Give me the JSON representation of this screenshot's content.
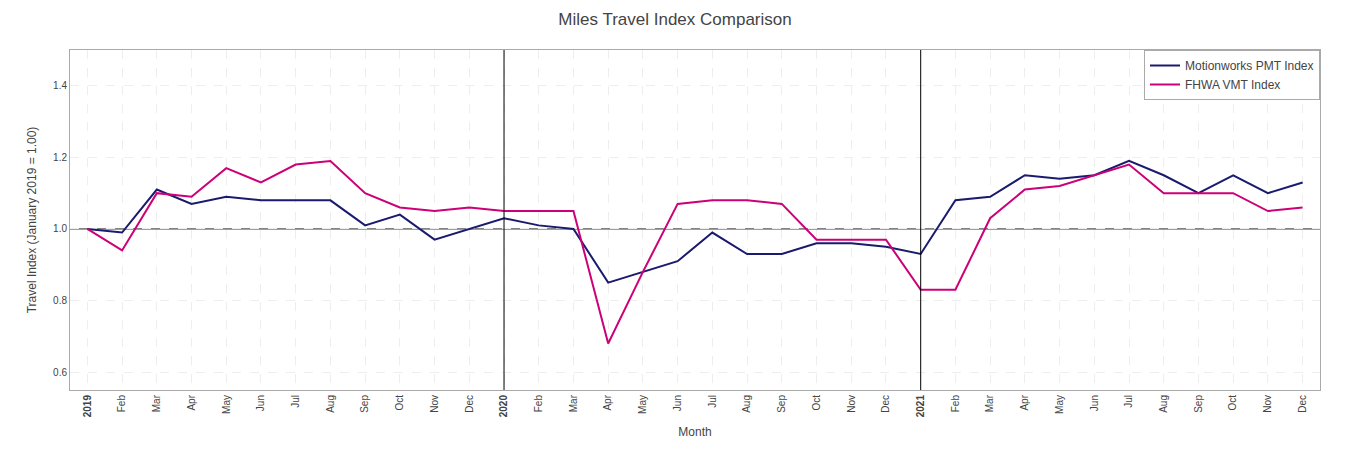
{
  "chart_data": {
    "type": "line",
    "title": "Miles Travel Index Comparison",
    "x_label": "Month",
    "y_label": "Travel Index (January 2019 = 1.00)",
    "categories": [
      "2019",
      "Feb",
      "Mar",
      "Apr",
      "May",
      "Jun",
      "Jul",
      "Aug",
      "Sep",
      "Oct",
      "Nov",
      "Dec",
      "2020",
      "Feb",
      "Mar",
      "Apr",
      "May",
      "Jun",
      "Jul",
      "Aug",
      "Sep",
      "Oct",
      "Nov",
      "Dec",
      "2021",
      "Feb",
      "Mar",
      "Apr",
      "May",
      "Jun",
      "Jul",
      "Aug",
      "Sep",
      "Oct",
      "Nov",
      "Dec"
    ],
    "series": [
      {
        "name": "Motionworks PMT Index",
        "color": "#1a1a6e",
        "values": [
          1.0,
          0.99,
          1.11,
          1.07,
          1.09,
          1.08,
          1.08,
          1.08,
          1.01,
          1.04,
          0.97,
          1.0,
          1.03,
          1.01,
          1.0,
          0.85,
          0.88,
          0.91,
          0.99,
          0.93,
          0.93,
          0.96,
          0.96,
          0.95,
          0.93,
          1.08,
          1.09,
          1.15,
          1.14,
          1.15,
          1.19,
          1.15,
          1.1,
          1.15,
          1.1,
          1.13
        ]
      },
      {
        "name": "FHWA VMT Index",
        "color": "#cc0077",
        "values": [
          1.0,
          0.94,
          1.1,
          1.09,
          1.17,
          1.13,
          1.18,
          1.19,
          1.1,
          1.06,
          1.05,
          1.06,
          1.05,
          1.05,
          1.05,
          0.68,
          0.88,
          1.07,
          1.08,
          1.08,
          1.07,
          0.97,
          0.97,
          0.97,
          0.83,
          0.83,
          1.03,
          1.11,
          1.12,
          1.15,
          1.18,
          1.1,
          1.1,
          1.1,
          1.05,
          1.06
        ]
      }
    ],
    "ylim": [
      0.55,
      1.5
    ],
    "yticks": [
      0.6,
      0.8,
      {
        "value": 1.0,
        "label": "1.0"
      },
      1.2,
      1.4
    ],
    "reference_line": 1.0,
    "vertical_lines": [
      "2020",
      "2021"
    ],
    "grid": true,
    "legend": "upper right"
  }
}
